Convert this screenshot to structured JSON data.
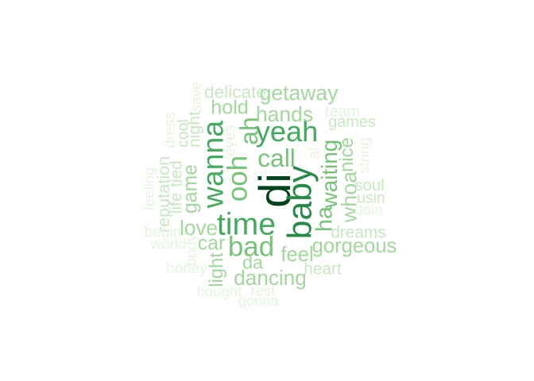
{
  "words": [
    {
      "text": "di",
      "weight": 1.0,
      "color": "#00441b",
      "rotate": true
    },
    {
      "text": "baby",
      "weight": 0.7,
      "color": "#238b45",
      "rotate": true
    },
    {
      "text": "time",
      "weight": 0.62,
      "color": "#41ab5d",
      "rotate": false
    },
    {
      "text": "wanna",
      "weight": 0.58,
      "color": "#41ab5d",
      "rotate": true
    },
    {
      "text": "yeah",
      "weight": 0.55,
      "color": "#41ab5d",
      "rotate": false
    },
    {
      "text": "bad",
      "weight": 0.52,
      "color": "#74c476",
      "rotate": false
    },
    {
      "text": "ooh",
      "weight": 0.52,
      "color": "#74c476",
      "rotate": true
    },
    {
      "text": "ah",
      "weight": 0.45,
      "color": "#74c476",
      "rotate": true
    },
    {
      "text": "call",
      "weight": 0.45,
      "color": "#74c476",
      "rotate": false
    },
    {
      "text": "ha",
      "weight": 0.38,
      "color": "#74c476",
      "rotate": true
    },
    {
      "text": "waiting",
      "weight": 0.36,
      "color": "#74c476",
      "rotate": true
    },
    {
      "text": "whoa",
      "weight": 0.34,
      "color": "#a1d99b",
      "rotate": true
    },
    {
      "text": "getaway",
      "weight": 0.33,
      "color": "#a1d99b",
      "rotate": false
    },
    {
      "text": "hands",
      "weight": 0.33,
      "color": "#a1d99b",
      "rotate": false
    },
    {
      "text": "dancing",
      "weight": 0.32,
      "color": "#a1d99b",
      "rotate": false
    },
    {
      "text": "love",
      "weight": 0.32,
      "color": "#a1d99b",
      "rotate": false
    },
    {
      "text": "feel",
      "weight": 0.31,
      "color": "#a1d99b",
      "rotate": false
    },
    {
      "text": "gorgeous",
      "weight": 0.31,
      "color": "#a1d99b",
      "rotate": false
    },
    {
      "text": "hold",
      "weight": 0.3,
      "color": "#a1d99b",
      "rotate": false
    },
    {
      "text": "game",
      "weight": 0.29,
      "color": "#a1d99b",
      "rotate": true
    },
    {
      "text": "car",
      "weight": 0.29,
      "color": "#a1d99b",
      "rotate": false
    },
    {
      "text": "light",
      "weight": 0.27,
      "color": "#a1d99b",
      "rotate": true
    },
    {
      "text": "nice",
      "weight": 0.27,
      "color": "#a1d99b",
      "rotate": true
    },
    {
      "text": "da",
      "weight": 0.26,
      "color": "#a1d99b",
      "rotate": false
    },
    {
      "text": "delicate",
      "weight": 0.24,
      "color": "#c7e9c0",
      "rotate": false
    },
    {
      "text": "reputation",
      "weight": 0.22,
      "color": "#c7e9c0",
      "rotate": true
    },
    {
      "text": "night",
      "weight": 0.21,
      "color": "#c7e9c0",
      "rotate": true
    },
    {
      "text": "life",
      "weight": 0.2,
      "color": "#c7e9c0",
      "rotate": true
    },
    {
      "text": "tied",
      "weight": 0.2,
      "color": "#c7e9c0",
      "rotate": true
    },
    {
      "text": "dreams",
      "weight": 0.2,
      "color": "#c7e9c0",
      "rotate": false
    },
    {
      "text": "heart",
      "weight": 0.2,
      "color": "#c7e9c0",
      "rotate": false
    },
    {
      "text": "soul",
      "weight": 0.19,
      "color": "#c7e9c0",
      "rotate": false
    },
    {
      "text": "games",
      "weight": 0.18,
      "color": "#c7e9c0",
      "rotate": false
    },
    {
      "text": "team",
      "weight": 0.18,
      "color": "#e5f5e0",
      "rotate": false
    },
    {
      "text": "cool",
      "weight": 0.17,
      "color": "#c7e9c0",
      "rotate": true
    },
    {
      "text": "usin",
      "weight": 0.17,
      "color": "#c7e9c0",
      "rotate": false
    },
    {
      "text": "eyes",
      "weight": 0.16,
      "color": "#e5f5e0",
      "rotate": true
    },
    {
      "text": "al",
      "weight": 0.16,
      "color": "#e5f5e0",
      "rotate": true
    },
    {
      "text": "doin",
      "weight": 0.16,
      "color": "#e5f5e0",
      "rotate": false
    },
    {
      "text": "begin",
      "weight": 0.16,
      "color": "#e5f5e0",
      "rotate": false
    },
    {
      "text": "honey",
      "weight": 0.16,
      "color": "#e5f5e0",
      "rotate": false
    },
    {
      "text": "string",
      "weight": 0.15,
      "color": "#e5f5e0",
      "rotate": true
    },
    {
      "text": "feeling",
      "weight": 0.15,
      "color": "#e5f5e0",
      "rotate": true
    },
    {
      "text": "dress",
      "weight": 0.15,
      "color": "#e5f5e0",
      "rotate": true
    },
    {
      "text": "world",
      "weight": 0.15,
      "color": "#e5f5e0",
      "rotate": false
    },
    {
      "text": "body",
      "weight": 0.15,
      "color": "#e5f5e0",
      "rotate": true
    },
    {
      "text": "bought",
      "weight": 0.15,
      "color": "#e5f5e0",
      "rotate": false
    },
    {
      "text": "rest",
      "weight": 0.15,
      "color": "#e5f5e0",
      "rotate": false
    },
    {
      "text": "save",
      "weight": 0.14,
      "color": "#e5f5e0",
      "rotate": true
    },
    {
      "text": "gonna",
      "weight": 0.14,
      "color": "#e5f5e0",
      "rotate": false
    }
  ]
}
